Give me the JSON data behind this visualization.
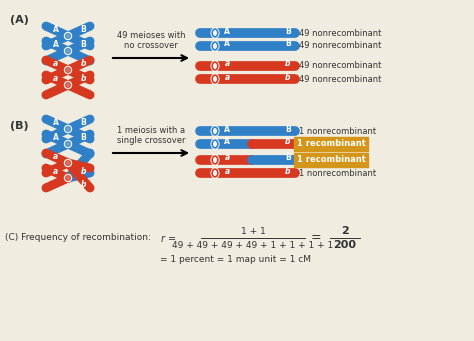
{
  "background_color": "#f0ece0",
  "blue_color": "#3080c8",
  "red_color": "#d63820",
  "orange_bg": "#d4961a",
  "text_color": "#333333",
  "section_A_label": "(A)",
  "section_B_label": "(B)",
  "section_C_label": "(C) Frequency of recombination:",
  "arrow_text_A": "49 meioses with\nno crossover",
  "arrow_text_B": "1 meiosis with a\nsingle crossover",
  "right_labels_A": [
    "49 nonrecombinant",
    "49 nonrecombinant",
    "49 nonrecombinant",
    "49 nonrecombinant"
  ],
  "right_labels_B": [
    "1 nonrecombinant",
    "1 recombinant",
    "1 recombinant",
    "1 nonrecombinant"
  ],
  "recombinant_indices_B": [
    1,
    2
  ],
  "numerator": "1 + 1",
  "denominator": "49 + 49 + 49 + 49 + 1 + 1 + 1 + 1",
  "fraction_right_num": "2",
  "fraction_right_den": "200",
  "formula_line2": "= 1 percent = 1 map unit = 1 cM"
}
